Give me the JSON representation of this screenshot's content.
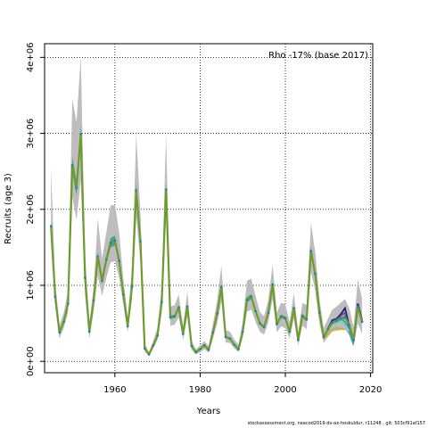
{
  "chart_data": {
    "type": "line",
    "annotation": "Rho -17% (base 2017)",
    "xlabel": "Years",
    "ylabel": "Recruits (age 3)",
    "xlim": [
      1943.5,
      2020.5
    ],
    "ylim": [
      -150000,
      4180000
    ],
    "x_ticks": [
      1960,
      1980,
      2000,
      2020
    ],
    "x_tick_labels": [
      "1960",
      "1980",
      "2000",
      "2020"
    ],
    "y_ticks": [
      0,
      1000000,
      2000000,
      3000000,
      4000000
    ],
    "y_tick_labels": [
      "0e+00",
      "1e+06",
      "2e+06",
      "3e+06",
      "4e+06"
    ],
    "grid": true,
    "colors": {
      "band": "#bdbdbd",
      "base": "#6e9a2f",
      "base_band": "#2a9a8a",
      "peel_1": "#1f1f6e",
      "peel_2": "#5a4aa0",
      "peel_3": "#3aa0c8",
      "peel_4": "#7ecfc0",
      "peel_5": "#c8b030",
      "points": "#2a8a8a"
    },
    "base_series": {
      "x": [
        1945,
        1946,
        1947,
        1948,
        1949,
        1950,
        1951,
        1952,
        1953,
        1954,
        1955,
        1956,
        1957,
        1958,
        1959,
        1960,
        1961,
        1962,
        1963,
        1964,
        1965,
        1966,
        1967,
        1968,
        1969,
        1970,
        1971,
        1972,
        1973,
        1974,
        1975,
        1976,
        1977,
        1978,
        1979,
        1980,
        1981,
        1982,
        1983,
        1984,
        1985,
        1986,
        1987,
        1988,
        1989,
        1990,
        1991,
        1992,
        1993,
        1994,
        1995,
        1996,
        1997,
        1998,
        1999,
        2000,
        2001,
        2002,
        2003,
        2004,
        2005,
        2006,
        2007,
        2008,
        2009,
        2010,
        2011,
        2012,
        2013,
        2014,
        2015,
        2016,
        2017,
        2018
      ],
      "y": [
        1780000,
        850000,
        380000,
        520000,
        760000,
        2580000,
        2280000,
        2990000,
        1100000,
        390000,
        800000,
        1380000,
        1060000,
        1340000,
        1560000,
        1590000,
        1320000,
        880000,
        460000,
        980000,
        2250000,
        1580000,
        170000,
        90000,
        210000,
        340000,
        780000,
        2260000,
        580000,
        590000,
        710000,
        360000,
        720000,
        200000,
        120000,
        160000,
        210000,
        150000,
        380000,
        630000,
        980000,
        320000,
        300000,
        220000,
        160000,
        390000,
        810000,
        850000,
        660000,
        500000,
        450000,
        640000,
        1010000,
        490000,
        590000,
        570000,
        390000,
        700000,
        280000,
        600000,
        550000,
        1450000,
        1150000,
        640000,
        320000,
        420000,
        510000,
        540000,
        560000,
        580000,
        480000,
        280000,
        720000,
        520000
      ],
      "lower": [
        1580000,
        720000,
        300000,
        440000,
        640000,
        2160000,
        1860000,
        2380000,
        860000,
        300000,
        660000,
        1120000,
        860000,
        1100000,
        1300000,
        1320000,
        1100000,
        740000,
        380000,
        820000,
        1900000,
        1320000,
        130000,
        70000,
        170000,
        280000,
        640000,
        1880000,
        470000,
        480000,
        580000,
        280000,
        590000,
        150000,
        90000,
        120000,
        160000,
        110000,
        300000,
        500000,
        790000,
        250000,
        240000,
        170000,
        120000,
        310000,
        650000,
        680000,
        520000,
        390000,
        350000,
        510000,
        820000,
        380000,
        460000,
        440000,
        300000,
        560000,
        210000,
        470000,
        420000,
        1180000,
        930000,
        500000,
        240000,
        320000,
        390000,
        400000,
        410000,
        420000,
        340000,
        190000,
        500000,
        360000
      ],
      "upper": [
        2550000,
        1050000,
        480000,
        640000,
        930000,
        3450000,
        3150000,
        4000000,
        1400000,
        500000,
        980000,
        1880000,
        1350000,
        1700000,
        2050000,
        2060000,
        1700000,
        1080000,
        580000,
        1220000,
        2990000,
        1950000,
        230000,
        120000,
        270000,
        440000,
        990000,
        2990000,
        720000,
        740000,
        880000,
        460000,
        920000,
        270000,
        160000,
        210000,
        270000,
        200000,
        490000,
        810000,
        1260000,
        410000,
        390000,
        290000,
        220000,
        520000,
        1060000,
        1090000,
        860000,
        650000,
        590000,
        810000,
        1270000,
        640000,
        770000,
        750000,
        520000,
        900000,
        380000,
        770000,
        740000,
        1820000,
        1440000,
        820000,
        440000,
        560000,
        680000,
        720000,
        770000,
        820000,
        700000,
        450000,
        1080000,
        820000
      ]
    },
    "peels": [
      {
        "x": [
          2009,
          2010,
          2011,
          2012,
          2013,
          2014,
          2015,
          2016,
          2017,
          2018
        ],
        "y": [
          300000,
          430000,
          540000,
          560000,
          620000,
          700000,
          460000,
          260000,
          760000,
          540000
        ]
      },
      {
        "x": [
          2009,
          2010,
          2011,
          2012,
          2013,
          2014,
          2015,
          2016,
          2017
        ],
        "y": [
          310000,
          420000,
          520000,
          550000,
          600000,
          640000,
          430000,
          300000,
          700000
        ]
      },
      {
        "x": [
          2009,
          2010,
          2011,
          2012,
          2013,
          2014,
          2015,
          2016
        ],
        "y": [
          320000,
          410000,
          500000,
          520000,
          560000,
          520000,
          390000,
          220000
        ]
      },
      {
        "x": [
          2009,
          2010,
          2011,
          2012,
          2013,
          2014,
          2015
        ],
        "y": [
          330000,
          400000,
          480000,
          500000,
          520000,
          480000,
          400000
        ]
      },
      {
        "x": [
          2009,
          2010,
          2011,
          2012,
          2013,
          2014
        ],
        "y": [
          300000,
          360000,
          420000,
          440000,
          430000,
          420000
        ]
      }
    ]
  },
  "footer": "stockassessment.org, neacod2019-dv-ax-hoskuldur, r11248 , git: 503cf91af157"
}
